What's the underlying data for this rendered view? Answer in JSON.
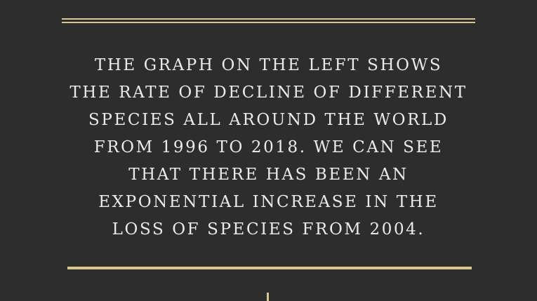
{
  "colors": {
    "background": "#2d2d2d",
    "accent": "#d8c791",
    "text": "#ebebeb"
  },
  "caption": {
    "lines": [
      "THE GRAPH ON THE LEFT SHOWS",
      "THE RATE OF DECLINE OF DIFFERENT",
      "SPECIES ALL AROUND THE WORLD",
      "FROM 1996 TO 2018. WE CAN SEE",
      "THAT THERE HAS BEEN AN",
      "EXPONENTIAL INCREASE IN THE",
      "LOSS OF SPECIES FROM 2004."
    ]
  }
}
